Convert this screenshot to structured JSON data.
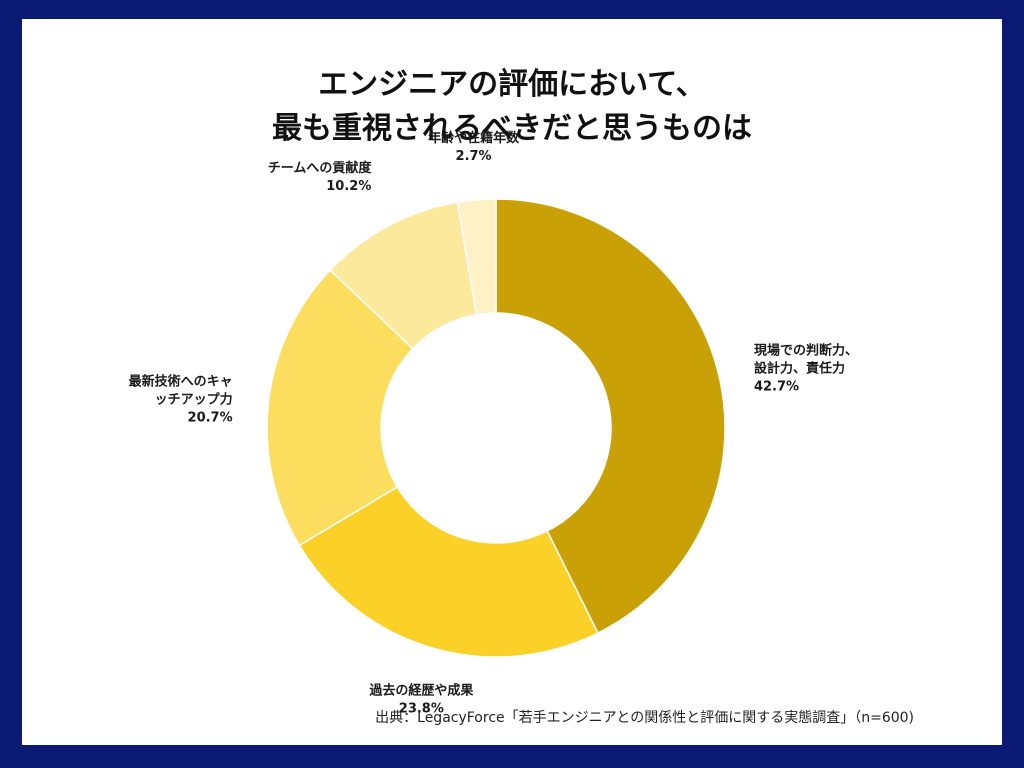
{
  "chart_data": {
    "type": "pie",
    "variant": "donut",
    "title_lines": [
      "エンジニアの評価において、",
      "最も重視されるべきだと思うものは"
    ],
    "slices": [
      {
        "label_lines": [
          "現場での判断力、",
          "設計力、責任力"
        ],
        "value": 42.7,
        "value_label": "42.7%",
        "color": "#c9a106"
      },
      {
        "label_lines": [
          "過去の経歴や成果"
        ],
        "value": 23.8,
        "value_label": "23.8%",
        "color": "#fbd128"
      },
      {
        "label_lines": [
          "最新技術へのキャ",
          "ッチアップ力"
        ],
        "value": 20.7,
        "value_label": "20.7%",
        "color": "#fcdd5e"
      },
      {
        "label_lines": [
          "チームへの貢献度"
        ],
        "value": 10.2,
        "value_label": "10.2%",
        "color": "#fde99b"
      },
      {
        "label_lines": [
          "年齢や在籍年数"
        ],
        "value": 2.7,
        "value_label": "2.7%",
        "color": "#fef1c5"
      }
    ],
    "start": "12 o'clock",
    "direction": "clockwise",
    "legend": "none"
  },
  "source": "出典：LegacyForce「若手エンジニアとの関係性と評価に関する実態調査」（n=600)",
  "colors": {
    "frame": "#0b1a72",
    "background": "#ffffff"
  }
}
